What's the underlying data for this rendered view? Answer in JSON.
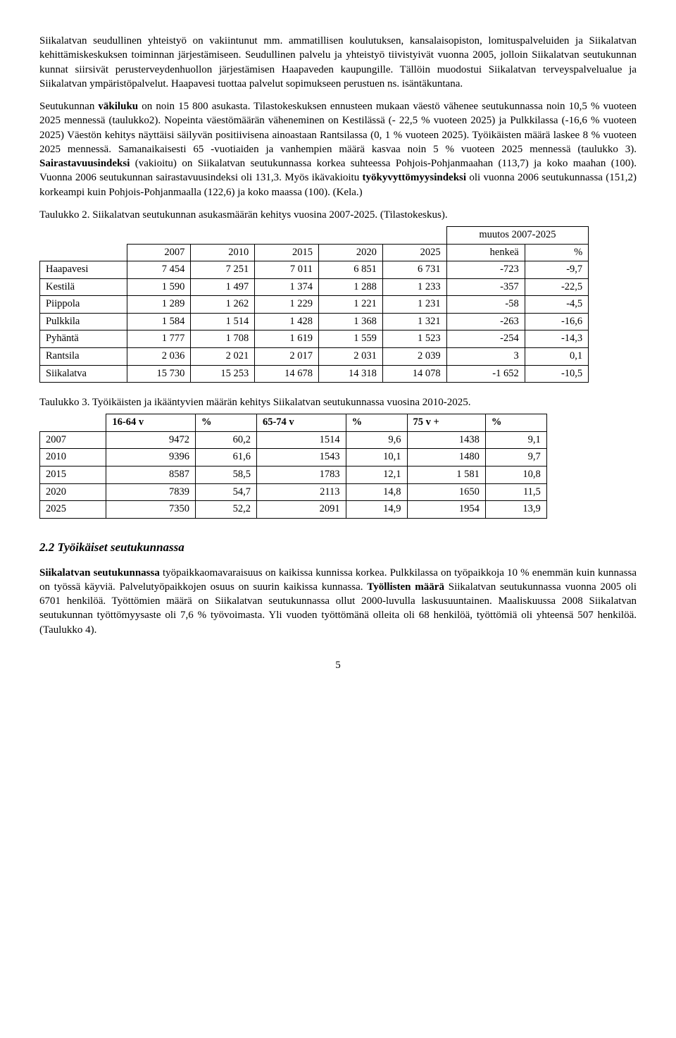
{
  "paragraphs": {
    "p1a": "Siikalatvan seudullinen yhteistyö on vakiintunut mm. ammatillisen koulutuksen, kansalaisopiston, lomituspalveluiden ja Siikalatvan kehittämiskeskuksen toiminnan järjestämiseen. Seudullinen palvelu ja yhteistyö tiivistyivät vuonna 2005, jolloin Siikalatvan seutukunnan kunnat siirsivät perusterveyden­huollon järjestämisen Haapaveden kaupungille. Tällöin muodostui Siikalatvan terveyspalvelualue ja Siikalatvan ympäristöpalvelut. Haapavesi tuottaa palvelut sopimukseen perustuen ns. isäntäkuntana.",
    "p2_parts": {
      "a1": "Seutukunnan ",
      "b1": "väkiluku",
      "a2": " on noin 15 800 asukasta. Tilastokeskuksen ennusteen mukaan väestö vähenee seutukunnassa noin 10,5 % vuoteen 2025 mennessä (taulukko2). Nopeinta väestömäärän väheneminen on Kestilässä (- 22,5 % vuoteen 2025) ja Pulkkilassa (-16,6 % vuoteen 2025) Väestön kehitys näyttäisi säilyvän positiivisena ainoastaan Rantsilassa (0, 1 % vuoteen 2025). Työikäisten määrä laskee 8 % vuoteen 2025 mennessä. Samanaikaisesti 65 -vuotiaiden ja vanhempien määrä kasvaa noin 5 % vuoteen 2025 mennessä (taulukko 3). ",
      "b2": "Sairastavuusindeksi",
      "a3": " (vakioitu) on Siikalatvan seutukunnassa korkea suhteessa Pohjois-Pohjanmaahan (113,7) ja koko maahan (100). Vuonna 2006 seutukunnan sairastavuusindeksi oli 131,3. Myös ikävakioitu ",
      "b3": "työkyvyttömyysindeksi",
      "a4": " oli vuonna 2006 seutukunnassa (151,2) korkeampi kuin Pohjois-Pohjanmaalla (122,6) ja koko maassa (100). (Kela.)"
    },
    "t2_caption": "Taulukko 2. Siikalatvan seutukunnan asukasmäärän kehitys vuosina 2007-2025. (Tilastokeskus).",
    "t3_caption": "Taulukko 3. Työikäisten ja ikääntyvien määrän kehitys Siikalatvan seutukunnassa vuosina 2010-2025.",
    "sect_title": "2.2 Työikäiset seutukunnassa",
    "p3_parts": {
      "b1": "Siikalatvan seutukunnassa",
      "a1": " työpaikkaomavaraisuus on kaikissa kunnissa korkea. Pulkkilassa on työpaikkoja 10 % enemmän kuin kunnassa on työssä käyviä. Palvelutyöpaikkojen osuus on suurin kaikissa kunnassa. ",
      "b2": "Työllisten määrä",
      "a2": " Siikalatvan seutukunnassa vuonna 2005 oli 6701 henkilöä. Työttömien määrä on Siikalatvan seutukunnassa ollut 2000-luvulla laskusuuntainen. Maaliskuussa 2008 Siikalatvan seutukunnan työttömyysaste oli 7,6 % työvoimasta. Yli vuoden työttömänä olleita oli 68 henkilöä, työttömiä oli yhteensä 507 henkilöä. (Taulukko 4)."
    }
  },
  "table2": {
    "group_header": "muutos 2007-2025",
    "col_years": [
      "2007",
      "2010",
      "2015",
      "2020",
      "2025"
    ],
    "col_change": [
      "henkeä",
      "%"
    ],
    "rows": [
      {
        "name": "Haapavesi",
        "v": [
          "7 454",
          "7 251",
          "7 011",
          "6 851",
          "6 731",
          "-723",
          "-9,7"
        ]
      },
      {
        "name": "Kestilä",
        "v": [
          "1 590",
          "1 497",
          "1 374",
          "1 288",
          "1 233",
          "-357",
          "-22,5"
        ]
      },
      {
        "name": "Piippola",
        "v": [
          "1 289",
          "1 262",
          "1 229",
          "1 221",
          "1 231",
          "-58",
          "-4,5"
        ]
      },
      {
        "name": "Pulkkila",
        "v": [
          "1 584",
          "1 514",
          "1 428",
          "1 368",
          "1 321",
          "-263",
          "-16,6"
        ]
      },
      {
        "name": "Pyhäntä",
        "v": [
          "1 777",
          "1 708",
          "1 619",
          "1 559",
          "1 523",
          "-254",
          "-14,3"
        ]
      },
      {
        "name": "Rantsila",
        "v": [
          "2 036",
          "2 021",
          "2 017",
          "2 031",
          "2 039",
          "3",
          "0,1"
        ]
      },
      {
        "name": "Siikalatva",
        "v": [
          "15 730",
          "15 253",
          "14 678",
          "14 318",
          "14 078",
          "-1 652",
          "-10,5"
        ]
      }
    ]
  },
  "table3": {
    "headers": [
      "",
      "16-64 v",
      "%",
      "65-74 v",
      "%",
      "75 v +",
      "%"
    ],
    "rows": [
      {
        "y": "2007",
        "v": [
          "9472",
          "60,2",
          "1514",
          "9,6",
          "1438",
          "9,1"
        ]
      },
      {
        "y": "2010",
        "v": [
          "9396",
          "61,6",
          "1543",
          "10,1",
          "1480",
          "9,7"
        ]
      },
      {
        "y": "2015",
        "v": [
          "8587",
          "58,5",
          "1783",
          "12,1",
          "1 581",
          "10,8"
        ]
      },
      {
        "y": "2020",
        "v": [
          "7839",
          "54,7",
          "2113",
          "14,8",
          "1650",
          "11,5"
        ]
      },
      {
        "y": "2025",
        "v": [
          "7350",
          "52,2",
          "2091",
          "14,9",
          "1954",
          "13,9"
        ]
      }
    ]
  },
  "page_number": "5"
}
